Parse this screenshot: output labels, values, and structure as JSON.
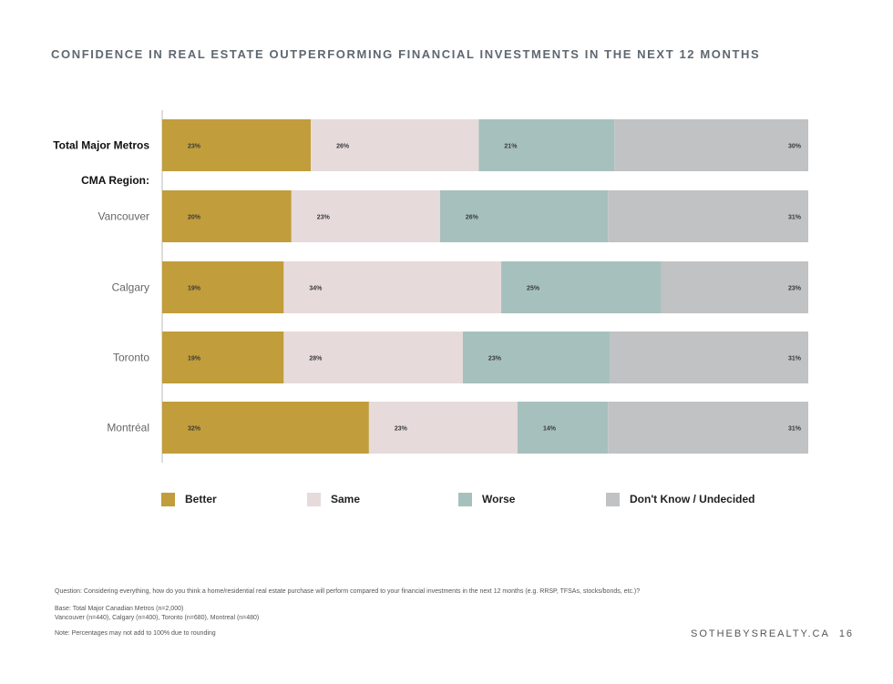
{
  "chart_data": {
    "type": "bar",
    "stacked": true,
    "orientation": "horizontal",
    "normalized": true,
    "title": "CONFIDENCE IN REAL ESTATE OUTPERFORMING FINANCIAL INVESTMENTS IN THE NEXT 12 MONTHS",
    "group_label": "CMA Region:",
    "categories": [
      "Total Major Metros",
      "Vancouver",
      "Calgary",
      "Toronto",
      "Montréal"
    ],
    "series": [
      {
        "name": "Better",
        "color": "#c19d3b",
        "values": [
          23,
          20,
          19,
          19,
          32
        ],
        "labels": [
          "23%",
          "20%",
          "19%",
          "19%",
          "32%"
        ]
      },
      {
        "name": "Same",
        "color": "#e6dadb",
        "values": [
          26,
          23,
          34,
          28,
          23
        ],
        "labels": [
          "26%",
          "23%",
          "34%",
          "28%",
          "23%"
        ]
      },
      {
        "name": "Worse",
        "color": "#a6c1bd",
        "values": [
          21,
          26,
          25,
          23,
          14
        ],
        "labels": [
          "21%",
          "26%",
          "25%",
          "23%",
          "14%"
        ]
      },
      {
        "name": "Don't Know / Undecided",
        "color": "#c1c2c4",
        "values": [
          30,
          31,
          23,
          31,
          31
        ],
        "labels": [
          "30%",
          "31%",
          "23%",
          "31%",
          "31%"
        ]
      }
    ]
  },
  "footer": {
    "question": "Question: Considering everything, how do you think a home/residential real estate purchase will perform compared to your financial investments in the next 12 months (e.g. RRSP, TFSAs, stocks/bonds, etc.)?",
    "base_line1": "Base: Total Major Canadian Metros (n=2,000)",
    "base_line2": "Vancouver (n=440), Calgary (n=400), Toronto (n=680), Montreal (n=480)",
    "note": "Note: Percentages may not add to 100% due to rounding"
  },
  "brand": {
    "name": "SOTHEBYSREALTY.CA",
    "page": "16"
  }
}
